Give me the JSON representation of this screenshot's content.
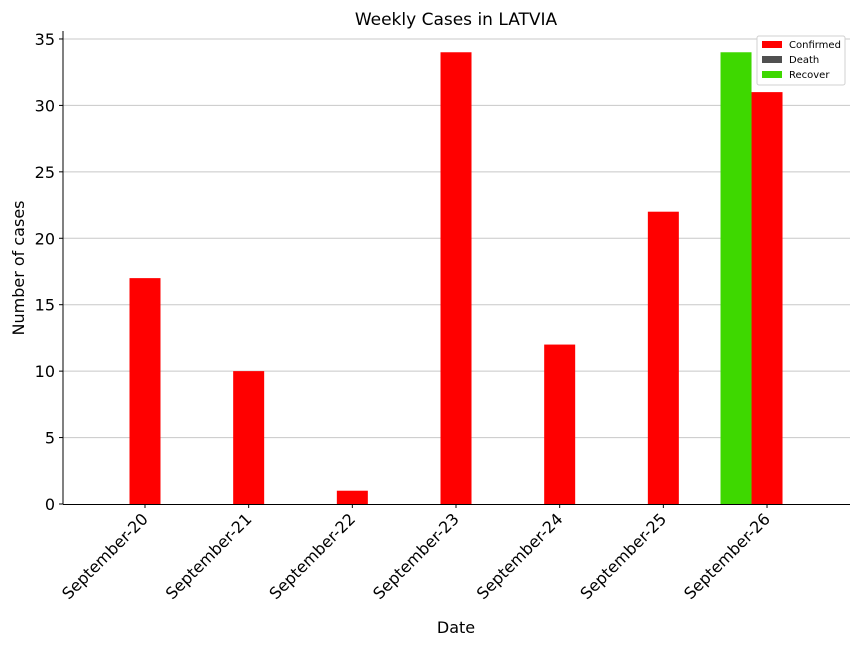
{
  "chart_data": {
    "type": "bar",
    "title": "Weekly Cases in LATVIA",
    "xlabel": "Date",
    "ylabel": "Number of cases",
    "categories": [
      "September-20",
      "September-21",
      "September-22",
      "September-23",
      "September-24",
      "September-25",
      "September-26"
    ],
    "series": [
      {
        "name": "Confirmed",
        "color": "#ff0000",
        "values": [
          17,
          10,
          1,
          34,
          12,
          22,
          31
        ]
      },
      {
        "name": "Death",
        "color": "#505050",
        "values": [
          0,
          0,
          0,
          0,
          0,
          0,
          0
        ]
      },
      {
        "name": "Recover",
        "color": "#3ed800",
        "values": [
          0,
          0,
          0,
          0,
          0,
          0,
          34
        ]
      }
    ],
    "ylim": [
      0,
      35.6
    ],
    "yticks": [
      0,
      5,
      10,
      15,
      20,
      25,
      30,
      35
    ],
    "grid": "horizontal",
    "legend_position": "top-right"
  }
}
